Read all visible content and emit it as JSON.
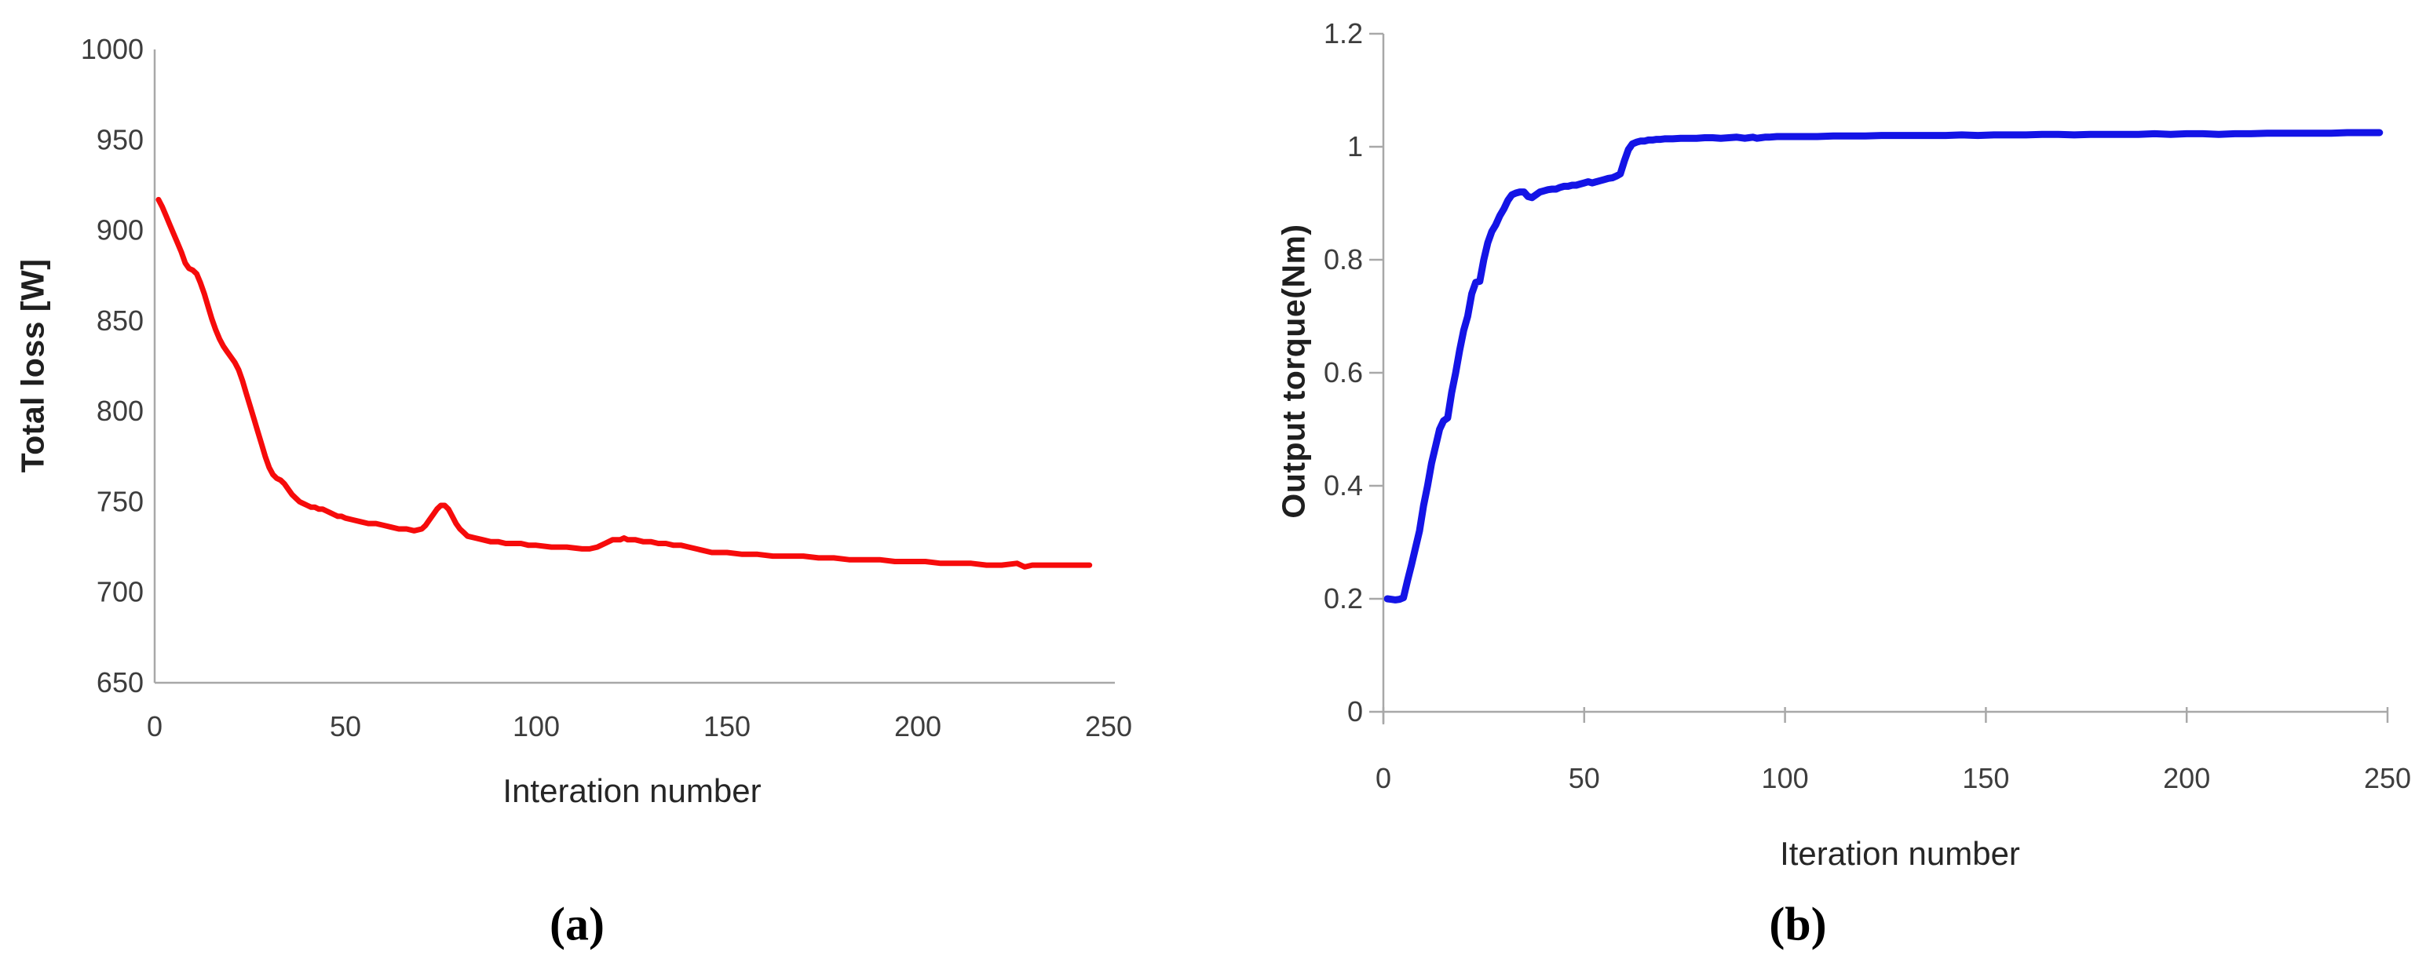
{
  "colors": {
    "axis": "#a8a8a8",
    "tick_label": "#3d3d3d",
    "axis_title": "#262626",
    "series_a_red": "#f60b0b",
    "series_b_blue": "#1414e6"
  },
  "chart_data": [
    {
      "id": "a",
      "type": "line",
      "title": "",
      "caption": "(a)",
      "xlabel": "Interation number",
      "ylabel": "Total loss [W]",
      "xlim": [
        0,
        250
      ],
      "ylim": [
        650,
        1000
      ],
      "xticks": [
        0,
        50,
        100,
        150,
        200,
        250
      ],
      "yticks": [
        650,
        700,
        750,
        800,
        850,
        900,
        950,
        1000
      ],
      "grid": false,
      "legend": "none",
      "line_color": "#f60b0b",
      "x": [
        1,
        2,
        3,
        4,
        5,
        6,
        7,
        8,
        9,
        10,
        11,
        12,
        13,
        14,
        15,
        16,
        17,
        18,
        19,
        20,
        21,
        22,
        23,
        24,
        25,
        26,
        27,
        28,
        29,
        30,
        31,
        32,
        33,
        34,
        35,
        36,
        37,
        38,
        39,
        40,
        41,
        42,
        43,
        44,
        45,
        46,
        47,
        48,
        49,
        50,
        52,
        54,
        56,
        58,
        60,
        62,
        64,
        66,
        68,
        70,
        71,
        72,
        73,
        74,
        75,
        76,
        77,
        78,
        79,
        80,
        81,
        82,
        84,
        86,
        88,
        90,
        92,
        94,
        96,
        98,
        100,
        104,
        108,
        112,
        114,
        116,
        118,
        120,
        122,
        123,
        124,
        126,
        128,
        130,
        132,
        134,
        136,
        138,
        140,
        142,
        144,
        146,
        148,
        150,
        154,
        158,
        162,
        166,
        170,
        174,
        178,
        182,
        186,
        190,
        194,
        198,
        202,
        206,
        210,
        214,
        218,
        222,
        226,
        228,
        230,
        234,
        238,
        242,
        245
      ],
      "y": [
        917,
        913,
        908,
        903,
        898,
        893,
        888,
        882,
        879,
        878,
        876,
        871,
        865,
        858,
        851,
        845,
        840,
        836,
        833,
        830,
        827,
        823,
        817,
        810,
        803,
        796,
        789,
        782,
        775,
        769,
        765,
        763,
        762,
        760,
        757,
        754,
        752,
        750,
        749,
        748,
        747,
        747,
        746,
        746,
        745,
        744,
        743,
        742,
        742,
        741,
        740,
        739,
        738,
        738,
        737,
        736,
        735,
        735,
        734,
        735,
        737,
        740,
        743,
        746,
        748,
        748,
        746,
        742,
        738,
        735,
        733,
        731,
        730,
        729,
        728,
        728,
        727,
        727,
        727,
        726,
        726,
        725,
        725,
        724,
        724,
        725,
        727,
        729,
        729,
        730,
        729,
        729,
        728,
        728,
        727,
        727,
        726,
        726,
        725,
        724,
        723,
        722,
        722,
        722,
        721,
        721,
        720,
        720,
        720,
        719,
        719,
        718,
        718,
        718,
        717,
        717,
        717,
        716,
        716,
        716,
        715,
        715,
        716,
        714,
        715,
        715,
        715,
        715,
        715
      ]
    },
    {
      "id": "b",
      "type": "line",
      "title": "",
      "caption": "(b)",
      "xlabel": "Iteration number",
      "ylabel": "Output torque(Nm)",
      "xlim": [
        0,
        250
      ],
      "ylim": [
        0,
        1.2
      ],
      "xticks": [
        0,
        50,
        100,
        150,
        200,
        250
      ],
      "yticks": [
        0,
        0.2,
        0.4,
        0.6,
        0.8,
        1,
        1.2
      ],
      "grid": false,
      "legend": "none",
      "line_color": "#1414e6",
      "x": [
        1,
        2,
        3,
        4,
        5,
        6,
        7,
        8,
        9,
        10,
        11,
        12,
        13,
        14,
        15,
        16,
        17,
        18,
        19,
        20,
        21,
        22,
        23,
        24,
        25,
        26,
        27,
        28,
        29,
        30,
        31,
        32,
        33,
        34,
        35,
        36,
        37,
        38,
        39,
        40,
        41,
        42,
        43,
        44,
        45,
        46,
        47,
        48,
        49,
        50,
        51,
        52,
        53,
        54,
        55,
        56,
        57,
        58,
        59,
        60,
        61,
        62,
        63,
        64,
        65,
        66,
        67,
        68,
        69,
        70,
        72,
        74,
        76,
        78,
        80,
        82,
        84,
        86,
        88,
        90,
        91,
        92,
        93,
        94,
        95,
        96,
        98,
        100,
        104,
        108,
        112,
        116,
        120,
        124,
        128,
        132,
        136,
        140,
        144,
        148,
        152,
        156,
        160,
        164,
        168,
        172,
        176,
        180,
        184,
        188,
        192,
        196,
        200,
        204,
        208,
        212,
        216,
        220,
        224,
        228,
        232,
        236,
        240,
        244,
        248
      ],
      "y": [
        0.2,
        0.199,
        0.198,
        0.199,
        0.202,
        0.232,
        0.26,
        0.29,
        0.32,
        0.365,
        0.4,
        0.44,
        0.47,
        0.5,
        0.515,
        0.52,
        0.565,
        0.6,
        0.64,
        0.675,
        0.7,
        0.74,
        0.76,
        0.762,
        0.8,
        0.83,
        0.85,
        0.862,
        0.878,
        0.89,
        0.905,
        0.915,
        0.918,
        0.92,
        0.92,
        0.912,
        0.91,
        0.915,
        0.92,
        0.922,
        0.924,
        0.925,
        0.925,
        0.928,
        0.93,
        0.93,
        0.932,
        0.932,
        0.934,
        0.936,
        0.938,
        0.936,
        0.938,
        0.94,
        0.942,
        0.944,
        0.945,
        0.948,
        0.952,
        0.975,
        0.995,
        1.005,
        1.008,
        1.01,
        1.01,
        1.012,
        1.012,
        1.013,
        1.013,
        1.014,
        1.014,
        1.015,
        1.015,
        1.015,
        1.016,
        1.016,
        1.015,
        1.016,
        1.017,
        1.015,
        1.016,
        1.017,
        1.015,
        1.016,
        1.017,
        1.017,
        1.018,
        1.018,
        1.018,
        1.018,
        1.019,
        1.019,
        1.019,
        1.02,
        1.02,
        1.02,
        1.02,
        1.02,
        1.021,
        1.02,
        1.021,
        1.021,
        1.021,
        1.022,
        1.022,
        1.021,
        1.022,
        1.022,
        1.022,
        1.022,
        1.023,
        1.022,
        1.023,
        1.023,
        1.022,
        1.023,
        1.023,
        1.024,
        1.024,
        1.024,
        1.024,
        1.024,
        1.025,
        1.025,
        1.025
      ]
    }
  ]
}
